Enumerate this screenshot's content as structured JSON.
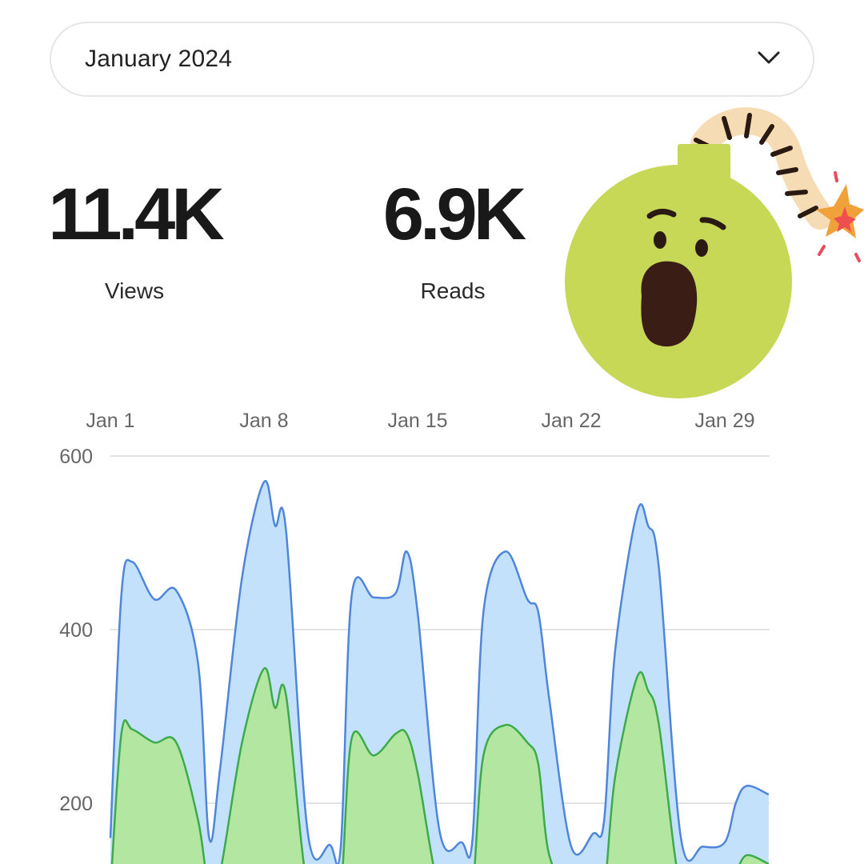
{
  "period_select": {
    "value": "January 2024",
    "icon": "chevron-down-icon"
  },
  "stats": {
    "views": {
      "value": "11.4K",
      "label": "Views"
    },
    "reads": {
      "value": "6.9K",
      "label": "Reads"
    }
  },
  "sticker": {
    "icon": "shocked-bomb-icon"
  },
  "colors": {
    "views_line": "#4f86d9",
    "views_fill": "#c4e1fb",
    "reads_line": "#3daa4b",
    "reads_fill": "#b3e6a1",
    "grid": "#e3e3e3",
    "axis_text": "#666666"
  },
  "chart_data": {
    "type": "area",
    "x_tick_labels": [
      "Jan 1",
      "Jan 8",
      "Jan 15",
      "Jan 22",
      "Jan 29"
    ],
    "x_tick_days": [
      1,
      8,
      15,
      22,
      29
    ],
    "y_ticks": [
      200,
      400,
      600
    ],
    "y_visible_range": [
      100,
      600
    ],
    "x_range": [
      1,
      31
    ],
    "series": [
      {
        "name": "Views",
        "x": [
          1,
          1.5,
          2,
          3,
          4,
          5,
          5.5,
          6,
          7,
          8,
          8.5,
          9,
          10,
          11,
          11.5,
          12,
          13,
          14,
          14.5,
          15,
          16,
          17,
          17.5,
          18,
          19,
          20,
          20.5,
          21,
          22,
          23,
          23.5,
          24,
          25,
          25.5,
          26,
          27,
          28,
          29,
          29.5,
          30,
          31
        ],
        "values": [
          160,
          440,
          478,
          435,
          445,
          360,
          160,
          240,
          460,
          570,
          520,
          515,
          165,
          152,
          150,
          440,
          437,
          442,
          490,
          420,
          168,
          155,
          158,
          420,
          490,
          435,
          420,
          320,
          150,
          165,
          180,
          375,
          535,
          520,
          470,
          160,
          150,
          155,
          200,
          220,
          210
        ]
      },
      {
        "name": "Reads",
        "x": [
          1,
          1.5,
          2,
          3,
          4,
          5,
          5.5,
          6,
          7,
          8,
          8.5,
          9,
          10,
          11,
          11.5,
          12,
          13,
          14,
          14.5,
          15,
          16,
          17,
          17.5,
          18,
          19,
          20,
          20.5,
          21,
          22,
          23,
          23.5,
          24,
          25,
          25.5,
          26,
          27,
          28,
          29,
          29.5,
          30,
          31
        ],
        "values": [
          100,
          280,
          285,
          270,
          270,
          180,
          100,
          120,
          270,
          355,
          310,
          325,
          100,
          100,
          100,
          275,
          255,
          280,
          280,
          235,
          100,
          100,
          100,
          255,
          290,
          270,
          245,
          140,
          100,
          100,
          100,
          230,
          345,
          330,
          290,
          100,
          100,
          100,
          120,
          140,
          130
        ]
      }
    ]
  }
}
